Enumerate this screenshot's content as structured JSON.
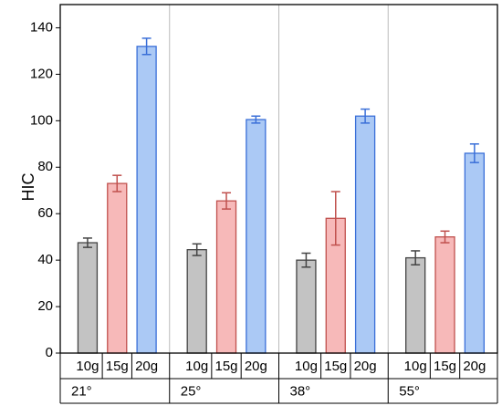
{
  "chart_data": {
    "type": "bar",
    "y_label": "HIC",
    "categories": [
      "21°",
      "25°",
      "38°",
      "55°"
    ],
    "series": [
      {
        "name": "10g",
        "color": "#c3c3c3",
        "edge": "#444444",
        "values": [
          47.5,
          44.5,
          40,
          41
        ],
        "errors": [
          2,
          2.5,
          3,
          3
        ]
      },
      {
        "name": "15g",
        "color": "#f7b9b9",
        "edge": "#c0504d",
        "values": [
          73,
          65.5,
          58,
          50
        ],
        "errors": [
          3.5,
          3.5,
          11.5,
          2.5
        ]
      },
      {
        "name": "20g",
        "color": "#abc9f5",
        "edge": "#3a6fd8",
        "values": [
          132,
          100.5,
          102,
          86
        ],
        "errors": [
          3.5,
          1.5,
          3,
          4
        ]
      }
    ],
    "ylim": [
      0,
      150
    ],
    "yticks": [
      0,
      20,
      40,
      60,
      80,
      100,
      120,
      140
    ]
  }
}
